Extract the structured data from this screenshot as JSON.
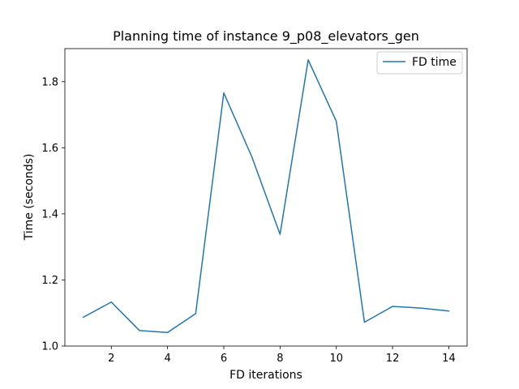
{
  "chart_data": {
    "type": "line",
    "title": "Planning time of instance 9_p08_elevators_gen",
    "xlabel": "FD iterations",
    "ylabel": "Time (seconds)",
    "xlim": [
      0.35,
      14.65
    ],
    "ylim": [
      1.0,
      1.9
    ],
    "xticks": [
      2,
      4,
      6,
      8,
      10,
      12,
      14
    ],
    "xtick_labels": [
      "2",
      "4",
      "6",
      "8",
      "10",
      "12",
      "14"
    ],
    "yticks": [
      1.0,
      1.2,
      1.4,
      1.6,
      1.8
    ],
    "ytick_labels": [
      "1.0",
      "1.2",
      "1.4",
      "1.6",
      "1.8"
    ],
    "grid": false,
    "legend_position": "upper right",
    "series": [
      {
        "name": "FD time",
        "color": "#1f77b4",
        "x": [
          1,
          2,
          3,
          4,
          5,
          6,
          7,
          8,
          9,
          10,
          11,
          12,
          13,
          14
        ],
        "y": [
          1.087,
          1.133,
          1.047,
          1.041,
          1.098,
          1.766,
          1.572,
          1.338,
          1.866,
          1.68,
          1.072,
          1.12,
          1.115,
          1.106
        ]
      }
    ]
  }
}
